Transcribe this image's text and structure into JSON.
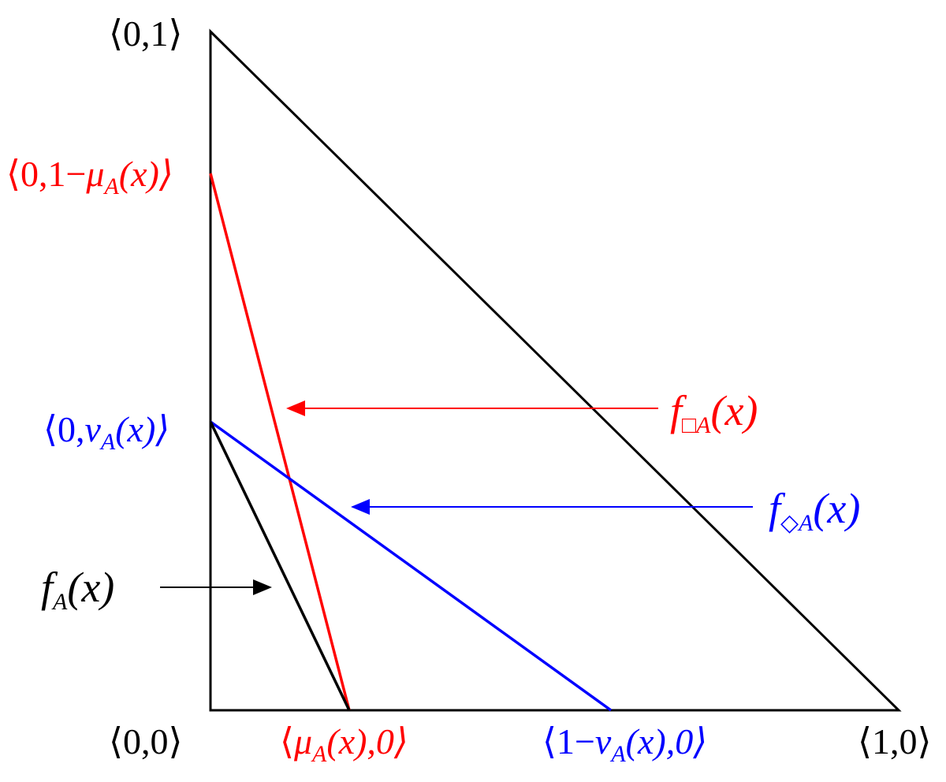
{
  "colors": {
    "black": "#000000",
    "red": "#ff0000",
    "blue": "#0000ff"
  },
  "labels": {
    "top_vertex": "⟨0,1⟩",
    "origin": "⟨0,0⟩",
    "right_vertex": "⟨1,0⟩",
    "red_left_prefix": "⟨0,1−",
    "red_left_mu": "μ",
    "red_left_sub": "A",
    "red_left_suffix": "(x)⟩",
    "blue_left_prefix": "⟨0,",
    "blue_left_nu": "ν",
    "blue_left_sub": "A",
    "blue_left_suffix": "(x)⟩",
    "red_bottom_prefix": "⟨",
    "red_bottom_mu": "μ",
    "red_bottom_sub": "A",
    "red_bottom_suffix": "(x),0⟩",
    "blue_bottom_prefix": "⟨1−",
    "blue_bottom_nu": "ν",
    "blue_bottom_sub": "A",
    "blue_bottom_suffix": "(x),0⟩",
    "f_black": "f",
    "f_black_sub": "A",
    "f_black_arg": "(x)",
    "f_box": "f",
    "f_box_sub": "□A",
    "f_box_arg": "(x)",
    "f_diamond": "f",
    "f_diamond_sub": "◇A",
    "f_diamond_arg": "(x)"
  }
}
